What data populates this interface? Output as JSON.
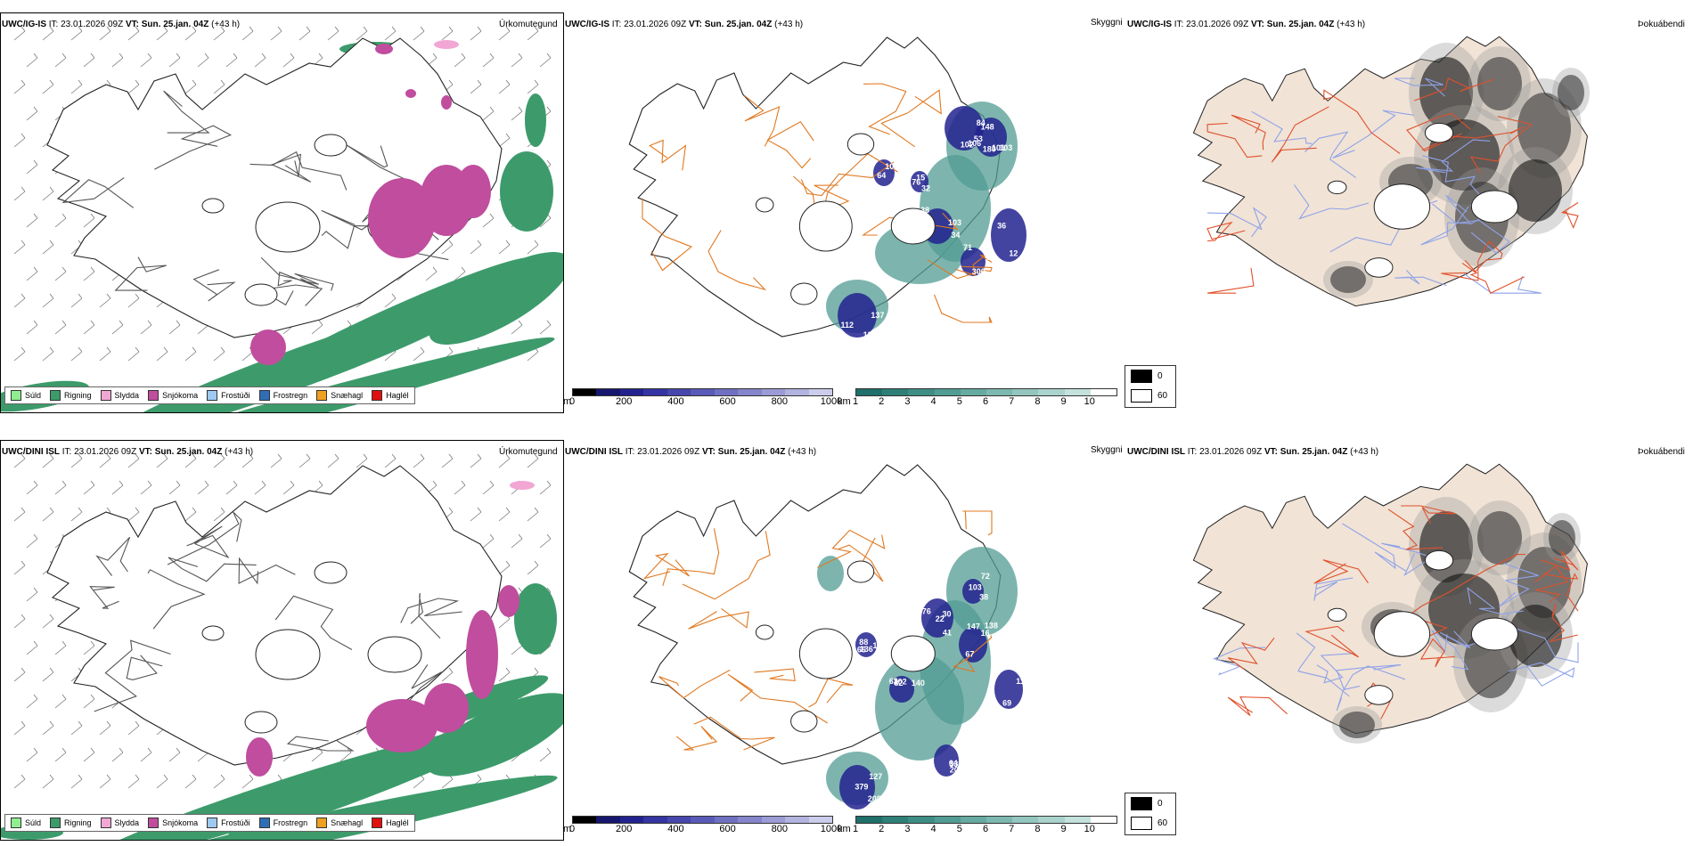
{
  "rows": [
    {
      "model": "UWC/IG-IS",
      "it_label": "IT:",
      "it_value": "23.01.2026 09Z",
      "vt_label": "VT:",
      "vt_value": "Sun. 25.jan. 04Z",
      "lead": "(+43 h)"
    },
    {
      "model": "UWC/DINI ISL",
      "it_label": "IT:",
      "it_value": "23.01.2026 09Z",
      "vt_label": "VT:",
      "vt_value": "Sun. 25.jan. 04Z",
      "lead": "(+43 h)"
    }
  ],
  "titles": {
    "precip": "Úrkomutegund",
    "cloud": "Skyggni",
    "fog": "Þokuábendi"
  },
  "precip_legend": [
    {
      "label": "Súld",
      "color": "#90ee90"
    },
    {
      "label": "Rigning",
      "color": "#3d9b6b"
    },
    {
      "label": "Slydda",
      "color": "#f2a6d4"
    },
    {
      "label": "Snjókoma",
      "color": "#c04d9e"
    },
    {
      "label": "Frostúði",
      "color": "#9ec9f0"
    },
    {
      "label": "Frostregn",
      "color": "#2f6eb5"
    },
    {
      "label": "Snæhagl",
      "color": "#f0a020"
    },
    {
      "label": "Haglél",
      "color": "#e01010"
    }
  ],
  "ceiling_scale": {
    "unit": "m",
    "ticks": [
      "0",
      "200",
      "400",
      "600",
      "800",
      "1000"
    ],
    "colors": [
      "#000000",
      "#16166e",
      "#22228f",
      "#3434a3",
      "#4646ad",
      "#5a5ab8",
      "#7070c2",
      "#8585cc",
      "#9b9bd6",
      "#b3b3e0",
      "#cccceb"
    ]
  },
  "visibility_scale": {
    "unit": "km",
    "ticks": [
      "1",
      "2",
      "3",
      "4",
      "5",
      "6",
      "7",
      "8",
      "9",
      "10"
    ],
    "colors": [
      "#1f6f6a",
      "#2e8077",
      "#3f8e85",
      "#519c93",
      "#66aaa1",
      "#7cb8b0",
      "#93c6bf",
      "#abd3cd",
      "#c4e1dc",
      "#ffffff"
    ]
  },
  "fog_scale": {
    "top": "0",
    "bottom": "60",
    "colors": [
      "#000000",
      "#ffffff"
    ]
  },
  "cloud_labels_top": [
    "102",
    "101",
    "105",
    "38",
    "57",
    "112",
    "12",
    "76",
    "84",
    "148",
    "64",
    "34",
    "300",
    "122",
    "312",
    "32",
    "53",
    "103",
    "59",
    "103",
    "71",
    "137",
    "36",
    "15",
    "106",
    "180"
  ],
  "cloud_labels_bottom": [
    "41",
    "147",
    "136",
    "102",
    "127",
    "208",
    "53",
    "103",
    "22",
    "67",
    "66",
    "63",
    "379",
    "64",
    "110",
    "72",
    "76",
    "138",
    "143",
    "140",
    "208",
    "33",
    "69",
    "38",
    "30",
    "16",
    "88",
    "82"
  ],
  "colors": {
    "coast": "#222222",
    "roads": "#e07820",
    "land_fog": "#f1e3d6",
    "rivers": "#8fa3e8",
    "fog_roads": "#e0502a"
  }
}
